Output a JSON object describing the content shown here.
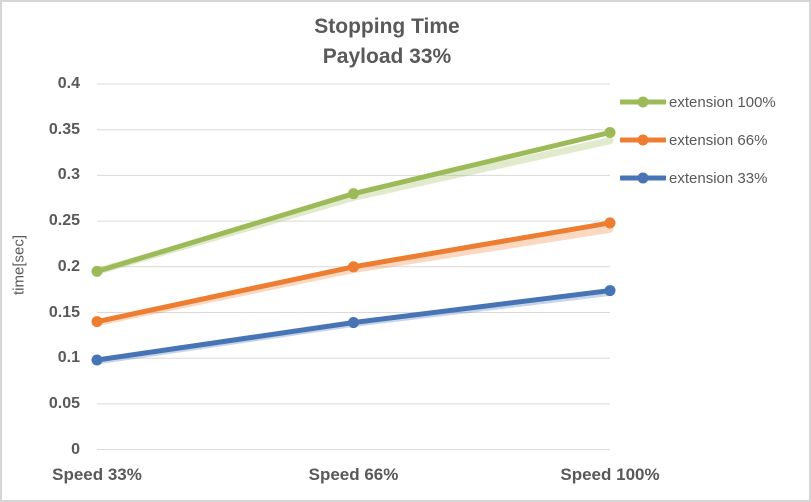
{
  "window": {
    "background": "#FFFFFF",
    "border_color": "#D6D6D6",
    "text_color": "#595959"
  },
  "chart_data": {
    "type": "line",
    "title_line1": "Stopping Time",
    "title_line2": "Payload 33%",
    "y_axis_title": "time[sec]",
    "xlabel": "",
    "categories": [
      "Speed 33%",
      "Speed 66%",
      "Speed 100%"
    ],
    "series": [
      {
        "name": "extension 100%",
        "color": "#9CBB58",
        "values": [
          0.195,
          0.28,
          0.347
        ],
        "shadow_values": [
          0.195,
          0.276,
          0.338
        ]
      },
      {
        "name": "extension 66%",
        "color": "#ED7D31",
        "values": [
          0.14,
          0.2,
          0.248
        ],
        "shadow_values": [
          0.139,
          0.197,
          0.241
        ]
      },
      {
        "name": "extension 33%",
        "color": "#4674B5",
        "values": [
          0.098,
          0.139,
          0.174
        ],
        "shadow_values": [
          0.097,
          0.138,
          0.172
        ]
      }
    ],
    "y_ticks": [
      {
        "label": "0",
        "value": 0
      },
      {
        "label": "0.05",
        "value": 0.05
      },
      {
        "label": "0.1",
        "value": 0.1
      },
      {
        "label": "0.15",
        "value": 0.15
      },
      {
        "label": "0.2",
        "value": 0.2
      },
      {
        "label": "0.25",
        "value": 0.25
      },
      {
        "label": "0.3",
        "value": 0.3
      },
      {
        "label": "0.35",
        "value": 0.35
      },
      {
        "label": "0.4",
        "value": 0.4
      }
    ],
    "ylim": [
      0,
      0.4
    ],
    "grid": true,
    "legend_position": "right",
    "gridline_color": "#D9D9D9",
    "shadow_opacity": 0.3
  }
}
